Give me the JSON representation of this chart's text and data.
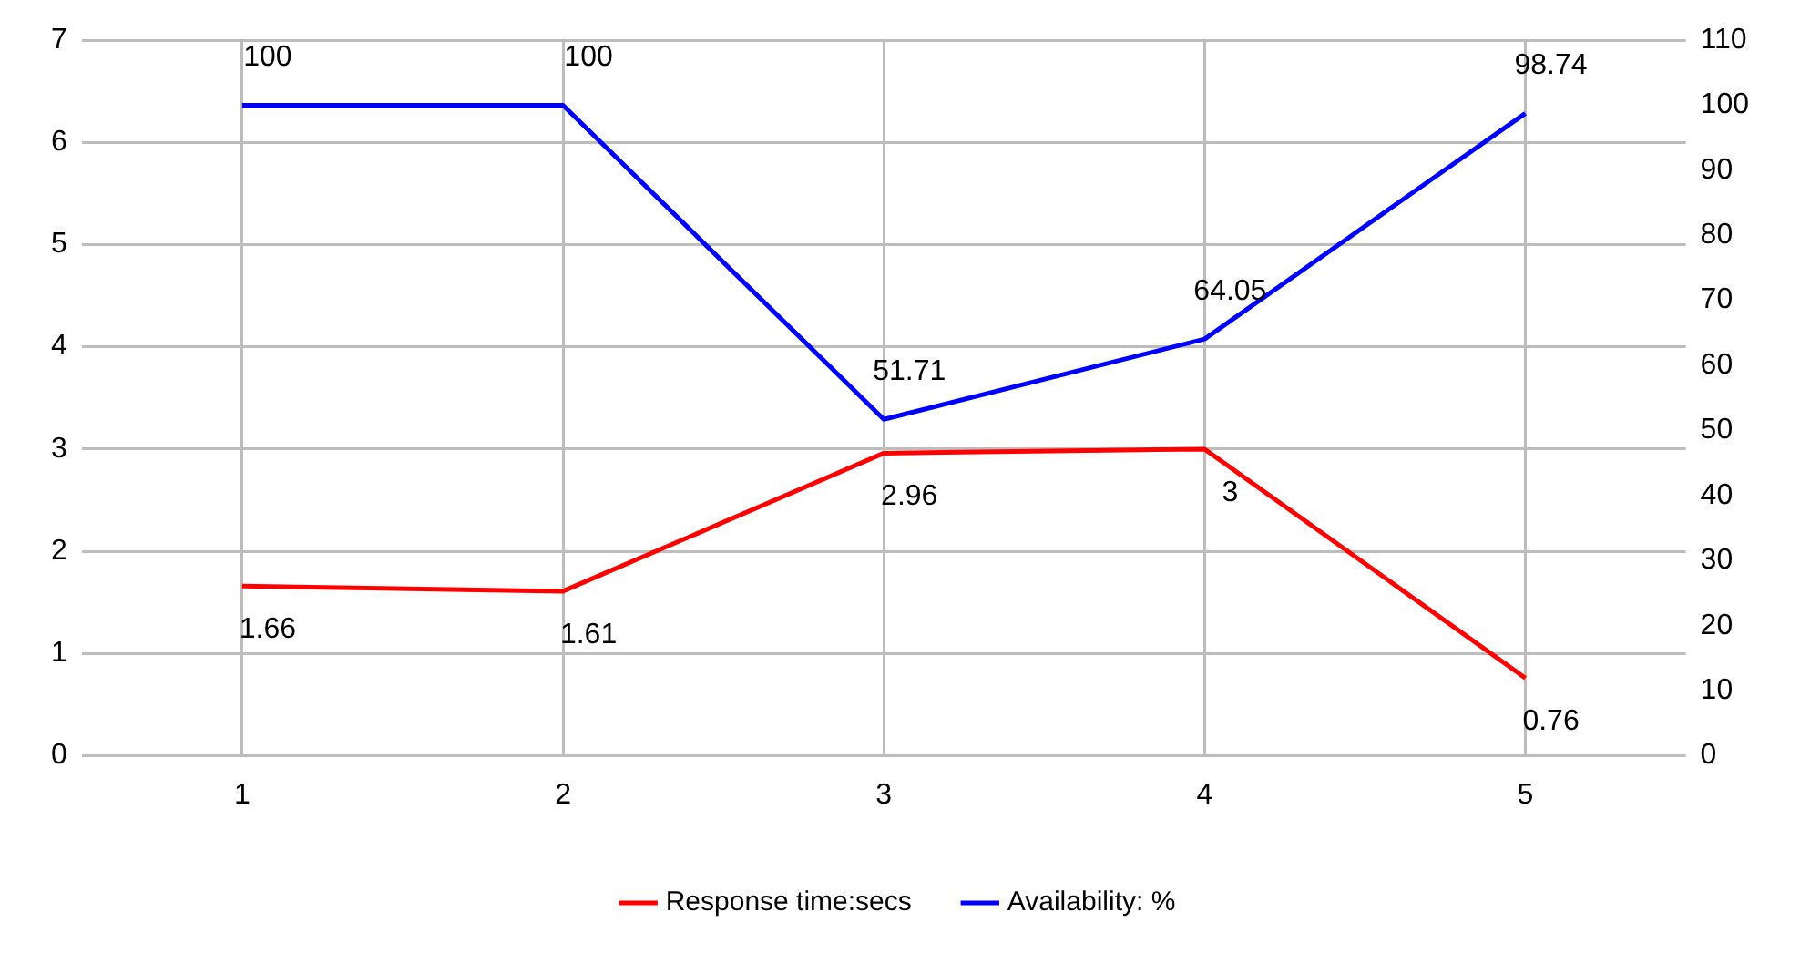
{
  "chart_data": {
    "type": "line",
    "categories": [
      "1",
      "2",
      "3",
      "4",
      "5"
    ],
    "series": [
      {
        "name": "Response time:secs",
        "color": "#ff0000",
        "values": [
          1.66,
          1.61,
          2.96,
          3,
          0.76
        ]
      },
      {
        "name": "Availability: %",
        "color": "#0000ff",
        "values": [
          100,
          100,
          51.71,
          64.05,
          98.74
        ],
        "axis": "y2"
      }
    ],
    "ylim": [
      0,
      7
    ],
    "yticks": [
      0,
      1,
      2,
      3,
      4,
      5,
      6,
      7
    ],
    "y2lim": [
      0,
      110
    ],
    "y2ticks": [
      0,
      10,
      20,
      30,
      40,
      50,
      60,
      70,
      80,
      90,
      100,
      110
    ],
    "grid": true,
    "legend": "bottom",
    "data_labels": true,
    "marker": "none",
    "line_style": "solid"
  }
}
